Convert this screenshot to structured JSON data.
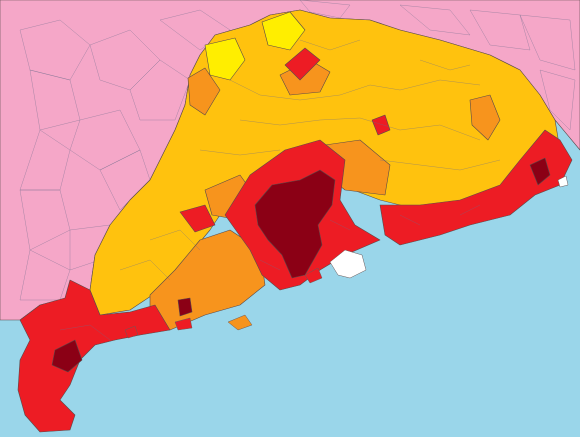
{
  "colors": {
    "sea": "#9ad6ea",
    "neighbor": "#f5a7c8",
    "level_1": "#ffee00",
    "level_2": "#ffc20e",
    "level_3": "#f7941d",
    "level_4": "#ed1c24",
    "level_5": "#8b0015",
    "no_data": "#ffffff"
  },
  "map": {
    "name_icon": "choropleth-map",
    "regions": []
  }
}
